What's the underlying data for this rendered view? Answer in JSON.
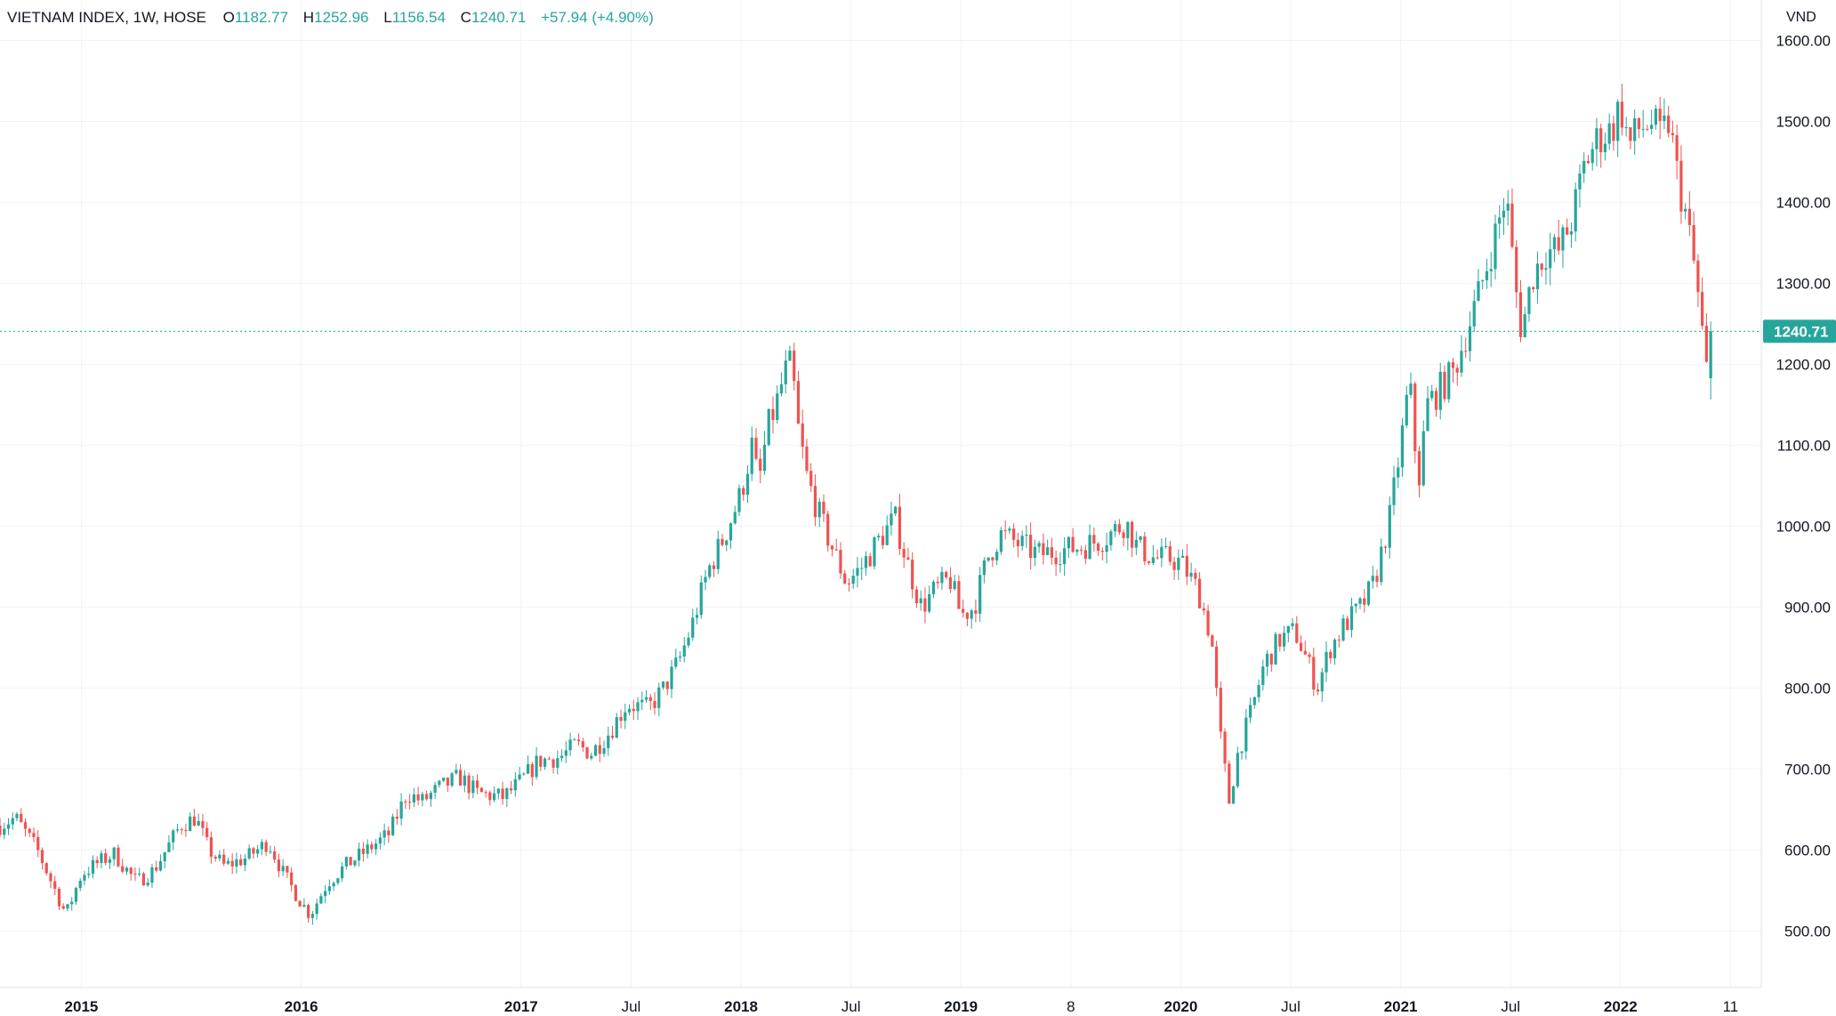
{
  "legend": {
    "symbol": "VIETNAM INDEX, 1W, HOSE",
    "open_label": "O",
    "open": "1182.77",
    "high_label": "H",
    "high": "1252.96",
    "low_label": "L",
    "low": "1156.54",
    "close_label": "C",
    "close": "1240.71",
    "change": "+57.94 (+4.90%)"
  },
  "chart_data": {
    "type": "candlestick",
    "title": "VIETNAM INDEX, 1W, HOSE",
    "ylabel": "VND",
    "ylim": [
      430,
      1650
    ],
    "y_ticks": [
      "1600.00",
      "1500.00",
      "1400.00",
      "1300.00",
      "1200.00",
      "1100.00",
      "1000.00",
      "900.00",
      "800.00",
      "700.00",
      "600.00",
      "500.00"
    ],
    "y_tick_values": [
      1600,
      1500,
      1400,
      1300,
      1200,
      1100,
      1000,
      900,
      800,
      700,
      600,
      500
    ],
    "last_price": 1240.71,
    "last_price_label": "1240.71",
    "x_ticks": [
      {
        "label": "2015",
        "t": 2015.0,
        "bold": true
      },
      {
        "label": "2016",
        "t": 2016.0,
        "bold": true
      },
      {
        "label": "2017",
        "t": 2017.0,
        "bold": true
      },
      {
        "label": "Jul",
        "t": 2017.5,
        "bold": false
      },
      {
        "label": "2018",
        "t": 2018.0,
        "bold": true
      },
      {
        "label": "Jul",
        "t": 2018.5,
        "bold": false
      },
      {
        "label": "2019",
        "t": 2019.0,
        "bold": true
      },
      {
        "label": "8",
        "t": 2019.5,
        "bold": false
      },
      {
        "label": "2020",
        "t": 2020.0,
        "bold": true
      },
      {
        "label": "Jul",
        "t": 2020.5,
        "bold": false
      },
      {
        "label": "2021",
        "t": 2021.0,
        "bold": true
      },
      {
        "label": "Jul",
        "t": 2021.5,
        "bold": false
      },
      {
        "label": "2022",
        "t": 2022.0,
        "bold": true
      },
      {
        "label": "11",
        "t": 2022.5,
        "bold": false
      }
    ],
    "x_range": [
      2014.63,
      2022.64
    ],
    "up_color": "#26a69a",
    "down_color": "#ef5350",
    "price_path": [
      [
        2014.63,
        630
      ],
      [
        2014.7,
        640
      ],
      [
        2014.8,
        600
      ],
      [
        2014.93,
        520
      ],
      [
        2015.0,
        570
      ],
      [
        2015.08,
        585
      ],
      [
        2015.15,
        595
      ],
      [
        2015.25,
        560
      ],
      [
        2015.33,
        575
      ],
      [
        2015.45,
        630
      ],
      [
        2015.52,
        640
      ],
      [
        2015.58,
        600
      ],
      [
        2015.65,
        580
      ],
      [
        2015.75,
        590
      ],
      [
        2015.85,
        610
      ],
      [
        2015.92,
        570
      ],
      [
        2016.0,
        535
      ],
      [
        2016.04,
        520
      ],
      [
        2016.12,
        560
      ],
      [
        2016.2,
        580
      ],
      [
        2016.3,
        600
      ],
      [
        2016.4,
        620
      ],
      [
        2016.48,
        670
      ],
      [
        2016.55,
        660
      ],
      [
        2016.62,
        675
      ],
      [
        2016.72,
        690
      ],
      [
        2016.8,
        670
      ],
      [
        2016.92,
        665
      ],
      [
        2017.0,
        685
      ],
      [
        2017.08,
        710
      ],
      [
        2017.18,
        715
      ],
      [
        2017.25,
        730
      ],
      [
        2017.32,
        720
      ],
      [
        2017.4,
        745
      ],
      [
        2017.48,
        780
      ],
      [
        2017.58,
        775
      ],
      [
        2017.65,
        800
      ],
      [
        2017.72,
        835
      ],
      [
        2017.78,
        880
      ],
      [
        2017.85,
        945
      ],
      [
        2017.92,
        985
      ],
      [
        2018.0,
        1040
      ],
      [
        2018.05,
        1100
      ],
      [
        2018.08,
        1050
      ],
      [
        2018.12,
        1120
      ],
      [
        2018.16,
        1150
      ],
      [
        2018.2,
        1190
      ],
      [
        2018.23,
        1200
      ],
      [
        2018.26,
        1120
      ],
      [
        2018.3,
        1060
      ],
      [
        2018.36,
        1010
      ],
      [
        2018.42,
        970
      ],
      [
        2018.48,
        930
      ],
      [
        2018.55,
        950
      ],
      [
        2018.62,
        980
      ],
      [
        2018.7,
        1010
      ],
      [
        2018.75,
        960
      ],
      [
        2018.82,
        900
      ],
      [
        2018.88,
        920
      ],
      [
        2018.95,
        935
      ],
      [
        2019.0,
        890
      ],
      [
        2019.06,
        900
      ],
      [
        2019.12,
        960
      ],
      [
        2019.18,
        990
      ],
      [
        2019.25,
        980
      ],
      [
        2019.35,
        965
      ],
      [
        2019.45,
        970
      ],
      [
        2019.55,
        975
      ],
      [
        2019.65,
        985
      ],
      [
        2019.75,
        1005
      ],
      [
        2019.8,
        975
      ],
      [
        2019.88,
        960
      ],
      [
        2019.95,
        960
      ],
      [
        2020.0,
        955
      ],
      [
        2020.08,
        920
      ],
      [
        2020.14,
        860
      ],
      [
        2020.18,
        740
      ],
      [
        2020.22,
        660
      ],
      [
        2020.26,
        720
      ],
      [
        2020.32,
        770
      ],
      [
        2020.38,
        830
      ],
      [
        2020.45,
        860
      ],
      [
        2020.52,
        870
      ],
      [
        2020.58,
        830
      ],
      [
        2020.62,
        800
      ],
      [
        2020.68,
        850
      ],
      [
        2020.75,
        880
      ],
      [
        2020.82,
        900
      ],
      [
        2020.88,
        930
      ],
      [
        2020.95,
        1010
      ],
      [
        2021.0,
        1100
      ],
      [
        2021.04,
        1180
      ],
      [
        2021.08,
        1050
      ],
      [
        2021.12,
        1150
      ],
      [
        2021.18,
        1170
      ],
      [
        2021.24,
        1190
      ],
      [
        2021.3,
        1240
      ],
      [
        2021.36,
        1290
      ],
      [
        2021.42,
        1350
      ],
      [
        2021.48,
        1410
      ],
      [
        2021.52,
        1300
      ],
      [
        2021.55,
        1240
      ],
      [
        2021.6,
        1310
      ],
      [
        2021.66,
        1340
      ],
      [
        2021.72,
        1340
      ],
      [
        2021.78,
        1380
      ],
      [
        2021.84,
        1450
      ],
      [
        2021.9,
        1480
      ],
      [
        2021.96,
        1490
      ],
      [
        2022.0,
        1520
      ],
      [
        2022.04,
        1470
      ],
      [
        2022.08,
        1490
      ],
      [
        2022.14,
        1500
      ],
      [
        2022.18,
        1480
      ],
      [
        2022.22,
        1500
      ],
      [
        2022.26,
        1430
      ],
      [
        2022.3,
        1380
      ],
      [
        2022.33,
        1330
      ],
      [
        2022.36,
        1270
      ],
      [
        2022.39,
        1190
      ],
      [
        2022.41,
        1240.71
      ]
    ]
  }
}
